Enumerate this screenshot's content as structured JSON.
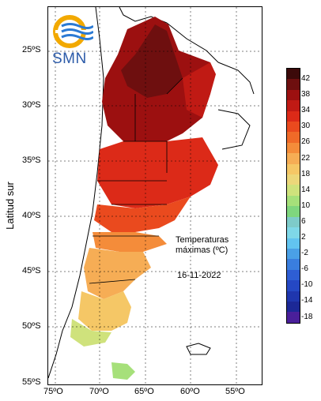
{
  "logo": {
    "text": "SMN",
    "icon": "smn-logo-icon"
  },
  "annotation": {
    "title_line1": "Temperaturas",
    "title_line2": "máximas (ºC)",
    "date": "16-11-2022"
  },
  "y_axis_title": "Latitud sur",
  "lat_ticks": [
    "25ºS",
    "30ºS",
    "35ºS",
    "40ºS",
    "45ºS",
    "50ºS",
    "55ºS"
  ],
  "lon_ticks": [
    "75ºO",
    "70ºO",
    "65ºO",
    "60ºO",
    "55ºO"
  ],
  "colorbar": {
    "labels": [
      "42",
      "38",
      "34",
      "30",
      "26",
      "22",
      "18",
      "14",
      "10",
      "6",
      "2",
      "-2",
      "-6",
      "-10",
      "-14",
      "-18"
    ],
    "colors": [
      "#3c0a0a",
      "#6e0f0f",
      "#9c1010",
      "#c01a14",
      "#dc2a18",
      "#ea4a1e",
      "#f06a28",
      "#f48c3a",
      "#f6ad55",
      "#f5c766",
      "#ecd77a",
      "#cfe27c",
      "#a6e07a",
      "#7fd67e",
      "#7ecbc9",
      "#7fd8e8",
      "#62c4f0",
      "#4aa0e6",
      "#3a7ede",
      "#2e5ed4",
      "#2548c4",
      "#1f36ae",
      "#1c2896",
      "#4a1f9a"
    ]
  }
}
